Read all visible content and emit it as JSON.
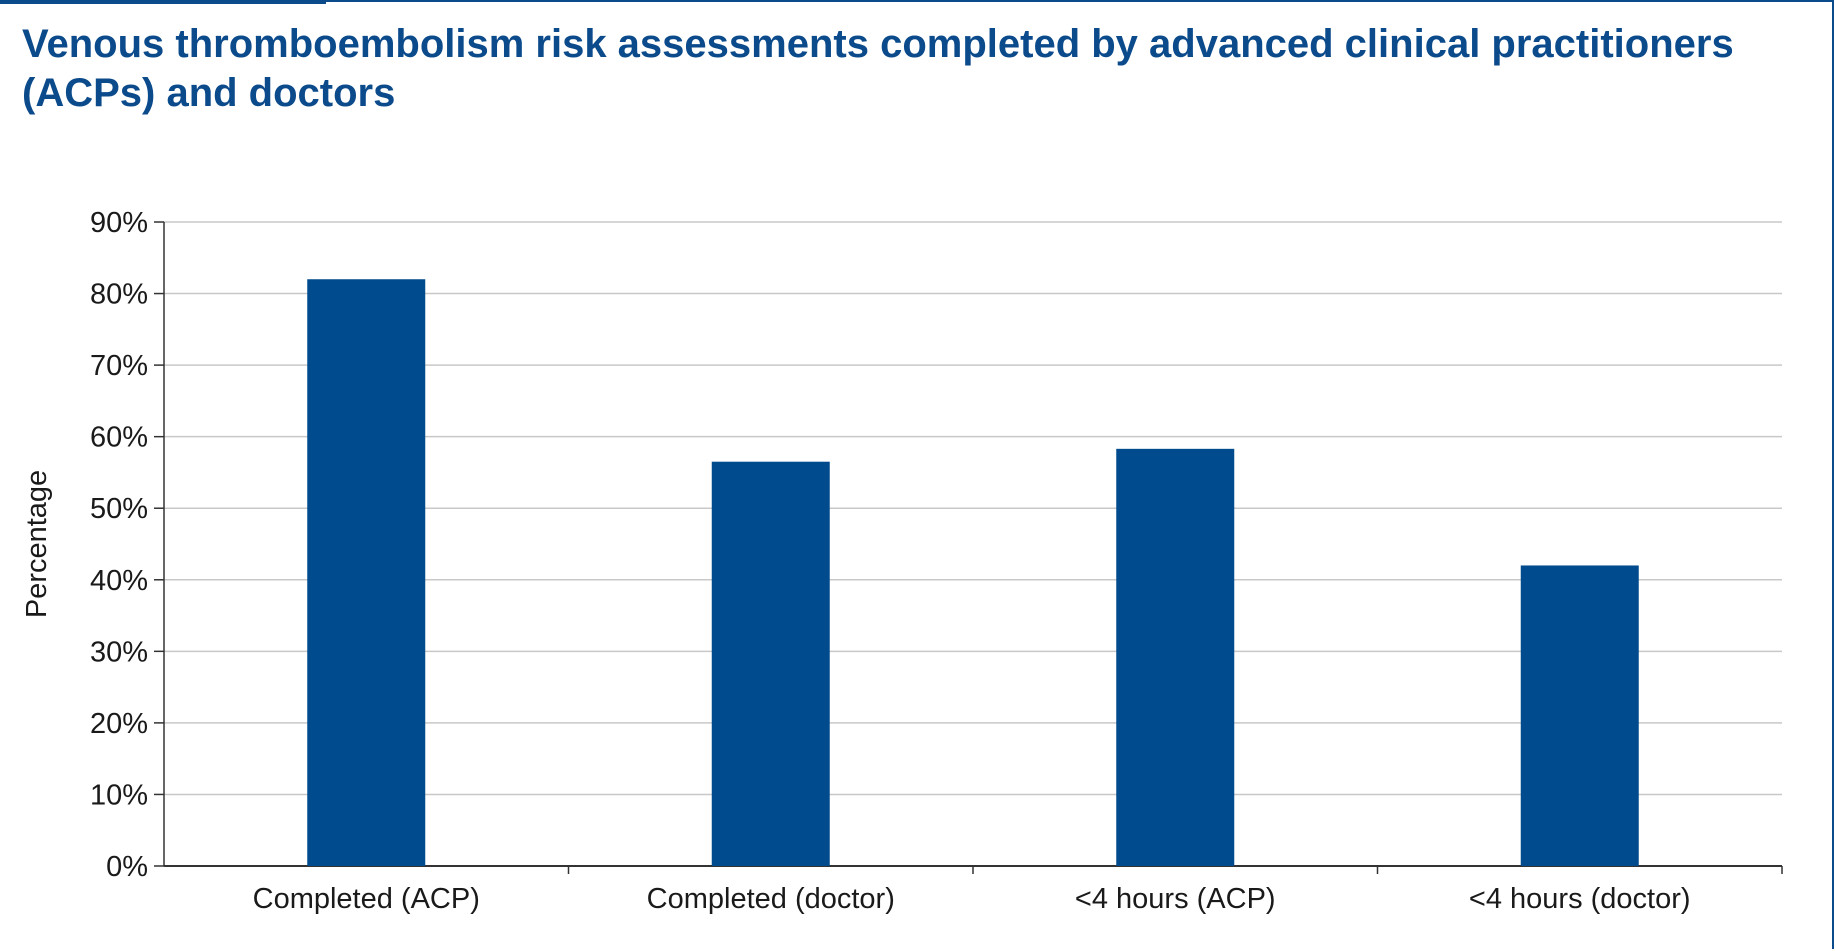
{
  "colors": {
    "accent": "#0b4a8b",
    "bar": "#004b8d",
    "grid": "#c8c8c8",
    "axis": "#333333",
    "text": "#1a1a1a"
  },
  "chart_data": {
    "type": "bar",
    "title": "Venous thromboembolism risk assessments completed by advanced clinical practitioners (ACPs) and doctors",
    "xlabel": "",
    "ylabel": "Percentage",
    "ylim": [
      0,
      90
    ],
    "yticks": [
      0,
      10,
      20,
      30,
      40,
      50,
      60,
      70,
      80,
      90
    ],
    "ytick_labels": [
      "0%",
      "10%",
      "20%",
      "30%",
      "40%",
      "50%",
      "60%",
      "70%",
      "80%",
      "90%"
    ],
    "grid": true,
    "legend": "none",
    "categories": [
      "Completed (ACP)",
      "Completed (doctor)",
      "<4 hours (ACP)",
      "<4 hours (doctor)"
    ],
    "values": [
      82,
      56.5,
      58.3,
      42
    ]
  }
}
